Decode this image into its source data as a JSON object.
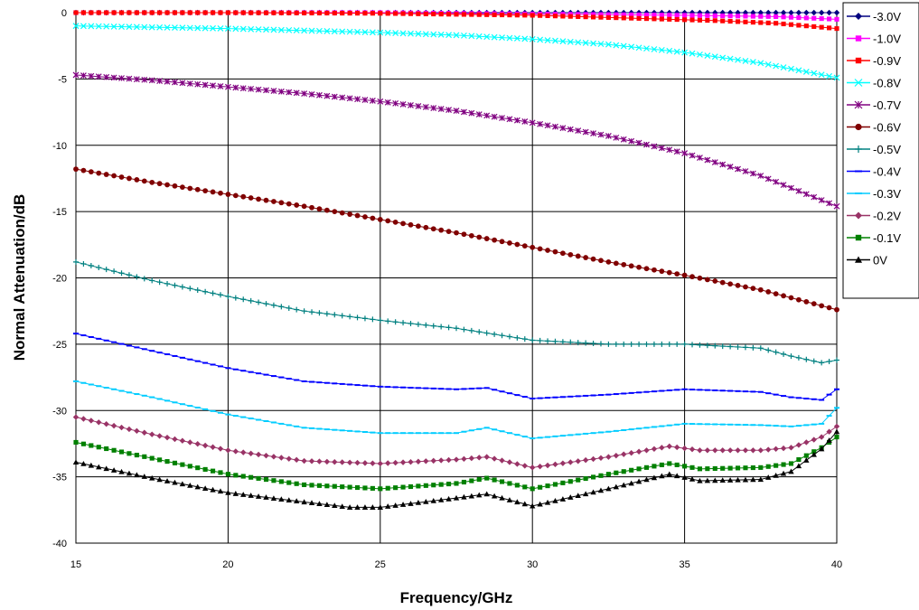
{
  "chart_data": {
    "type": "line",
    "title": "",
    "xlabel": "Frequency/GHz",
    "ylabel": "Normal Attenuation/dB",
    "xlim": [
      15,
      40
    ],
    "ylim": [
      -40,
      0
    ],
    "xticks": [
      "15",
      "20",
      "25",
      "30",
      "35",
      "40"
    ],
    "yticks": [
      "0",
      "-5",
      "-10",
      "-15",
      "-20",
      "-25",
      "-30",
      "-35",
      "-40"
    ],
    "grid": true,
    "legend_position": "right",
    "series": [
      {
        "name": "-3.0V",
        "color": "#000080",
        "marker": "diamond",
        "x": [
          15,
          20,
          25,
          30,
          35,
          40
        ],
        "y": [
          0,
          0,
          0,
          0,
          0,
          0
        ]
      },
      {
        "name": "-1.0V",
        "color": "#ff00ff",
        "marker": "square",
        "x": [
          15,
          20,
          25,
          30,
          35,
          38,
          40
        ],
        "y": [
          0,
          0,
          0,
          -0.1,
          -0.2,
          -0.3,
          -0.5
        ]
      },
      {
        "name": "-0.9V",
        "color": "#ff0000",
        "marker": "square",
        "x": [
          15,
          20,
          25,
          30,
          33,
          36,
          38,
          40
        ],
        "y": [
          0,
          0,
          -0.05,
          -0.2,
          -0.4,
          -0.6,
          -0.8,
          -1.2
        ]
      },
      {
        "name": "-0.8V",
        "color": "#00ffff",
        "marker": "x",
        "x": [
          15,
          17.5,
          20,
          22.5,
          25,
          27.5,
          30,
          32.5,
          35,
          37.5,
          40
        ],
        "y": [
          -1.0,
          -1.1,
          -1.2,
          -1.35,
          -1.5,
          -1.7,
          -2.0,
          -2.4,
          -3.0,
          -3.8,
          -4.9
        ]
      },
      {
        "name": "-0.7V",
        "color": "#800080",
        "marker": "star",
        "x": [
          15,
          17.5,
          20,
          22.5,
          25,
          27.5,
          30,
          32.5,
          35,
          37.5,
          40
        ],
        "y": [
          -4.7,
          -5.1,
          -5.6,
          -6.1,
          -6.7,
          -7.4,
          -8.3,
          -9.3,
          -10.6,
          -12.3,
          -14.6
        ]
      },
      {
        "name": "-0.6V",
        "color": "#800000",
        "marker": "circle",
        "x": [
          15,
          17.5,
          20,
          22.5,
          25,
          27.5,
          30,
          32.5,
          35,
          37.5,
          40
        ],
        "y": [
          -11.8,
          -12.8,
          -13.7,
          -14.6,
          -15.6,
          -16.6,
          -17.7,
          -18.8,
          -19.8,
          -20.9,
          -22.4
        ]
      },
      {
        "name": "-0.5V",
        "color": "#008080",
        "marker": "plus",
        "x": [
          15,
          17.5,
          20,
          22.5,
          25,
          27.5,
          30,
          32.5,
          35,
          37.5,
          38.5,
          39.5,
          40
        ],
        "y": [
          -18.8,
          -20.2,
          -21.4,
          -22.5,
          -23.2,
          -23.8,
          -24.7,
          -25.0,
          -25.0,
          -25.3,
          -25.9,
          -26.4,
          -26.2
        ]
      },
      {
        "name": "-0.4V",
        "color": "#0000ff",
        "marker": "dash",
        "x": [
          15,
          17.5,
          20,
          22.5,
          25,
          27.5,
          28.5,
          30,
          32.5,
          35,
          37.5,
          38.5,
          39.5,
          40
        ],
        "y": [
          -24.2,
          -25.5,
          -26.8,
          -27.8,
          -28.2,
          -28.4,
          -28.3,
          -29.1,
          -28.8,
          -28.4,
          -28.6,
          -29.0,
          -29.2,
          -28.4
        ]
      },
      {
        "name": "-0.3V",
        "color": "#00ccff",
        "marker": "dash",
        "x": [
          15,
          17.5,
          20,
          22.5,
          25,
          27.5,
          28.5,
          30,
          32.5,
          35,
          37.5,
          38.5,
          39.5,
          40
        ],
        "y": [
          -27.8,
          -29.0,
          -30.3,
          -31.3,
          -31.7,
          -31.7,
          -31.3,
          -32.1,
          -31.6,
          -31.0,
          -31.1,
          -31.2,
          -31.0,
          -29.8
        ]
      },
      {
        "name": "-0.2V",
        "color": "#993366",
        "marker": "diamond",
        "x": [
          15,
          17.5,
          20,
          22.5,
          25,
          27.5,
          28.5,
          30,
          32.5,
          34.5,
          35.5,
          37.5,
          38.5,
          39.5,
          40
        ],
        "y": [
          -30.5,
          -31.8,
          -33.0,
          -33.8,
          -34.0,
          -33.7,
          -33.5,
          -34.3,
          -33.5,
          -32.7,
          -33.0,
          -33.0,
          -32.8,
          -32.0,
          -31.2
        ]
      },
      {
        "name": "-0.1V",
        "color": "#008000",
        "marker": "square",
        "x": [
          15,
          17.5,
          20,
          22.5,
          25,
          27.5,
          28.5,
          30,
          32.5,
          34.5,
          35.5,
          37.5,
          38.5,
          39.5,
          40
        ],
        "y": [
          -32.4,
          -33.6,
          -34.8,
          -35.6,
          -35.9,
          -35.5,
          -35.1,
          -35.9,
          -34.8,
          -34.0,
          -34.4,
          -34.3,
          -34.0,
          -32.8,
          -32.0
        ]
      },
      {
        "name": "0V",
        "color": "#000000",
        "marker": "triangle",
        "x": [
          15,
          17.5,
          20,
          22.5,
          24,
          25,
          27.5,
          28.5,
          30,
          32.5,
          34.5,
          35.5,
          37.5,
          38.5,
          39.5,
          40
        ],
        "y": [
          -33.9,
          -35.1,
          -36.2,
          -36.9,
          -37.3,
          -37.3,
          -36.6,
          -36.3,
          -37.2,
          -35.9,
          -34.8,
          -35.3,
          -35.2,
          -34.6,
          -32.9,
          -31.6
        ]
      }
    ]
  }
}
